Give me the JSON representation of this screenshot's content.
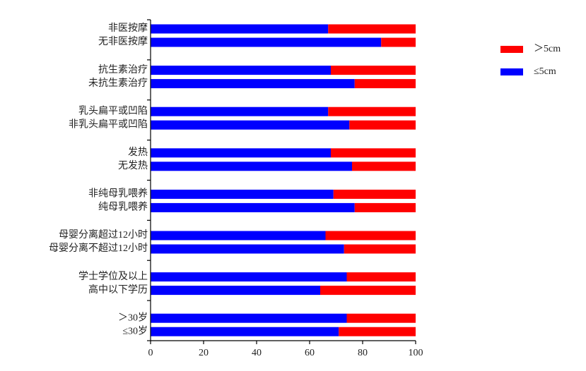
{
  "chart_data": {
    "type": "stacked-bar-horizontal",
    "categories": [
      "非医按摩",
      "无非医按摩",
      "抗生素治疗",
      "未抗生素治疗",
      "乳头扁平或凹陷",
      "非乳头扁平或凹陷",
      "发热",
      "无发热",
      "非纯母乳喂养",
      "纯母乳喂养",
      "母婴分离超过12小时",
      "母婴分离不超过12小时",
      "学士学位及以上",
      "高中以下学历",
      "＞30岁",
      "≤30岁"
    ],
    "series": [
      {
        "name": "≤5cm",
        "color": "#0000ff",
        "values": [
          67,
          87,
          68,
          77,
          67,
          75,
          68,
          76,
          69,
          77,
          66,
          73,
          74,
          64,
          74,
          71
        ]
      },
      {
        "name": "＞5cm",
        "color": "#ff0000",
        "values": [
          33,
          13,
          32,
          23,
          33,
          25,
          32,
          24,
          31,
          23,
          34,
          27,
          26,
          36,
          26,
          29
        ]
      }
    ],
    "xlim": [
      0,
      100
    ],
    "xticks": [
      0,
      20,
      40,
      60,
      80,
      100
    ]
  }
}
